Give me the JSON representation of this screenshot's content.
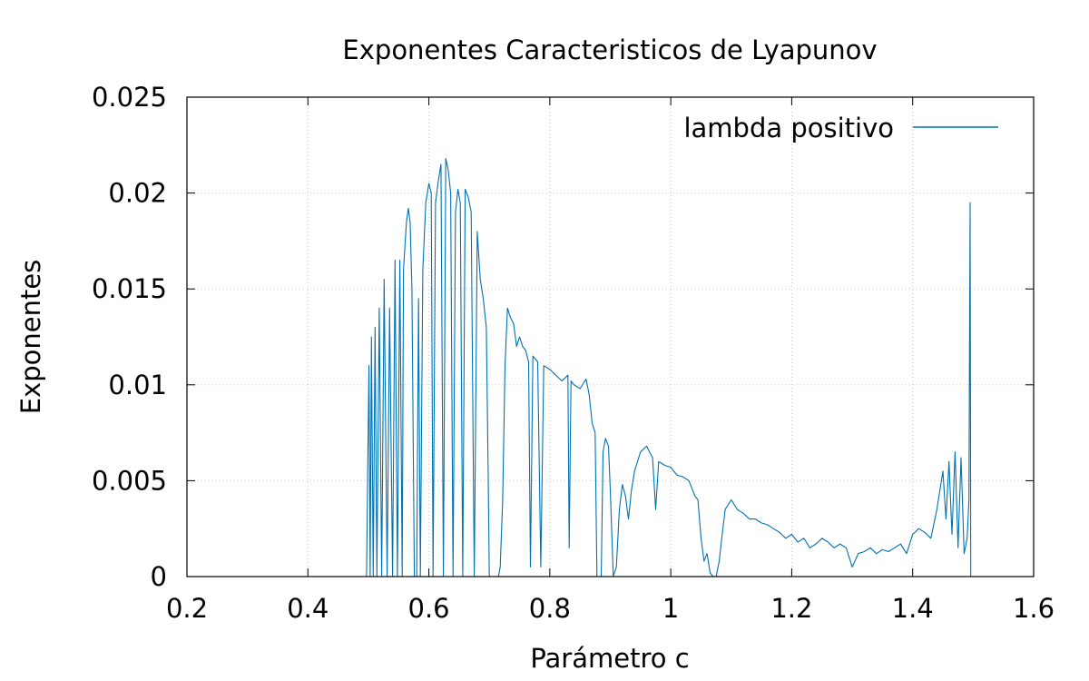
{
  "chart_data": {
    "type": "line",
    "title": "Exponentes Caracteristicos de Lyapunov",
    "xlabel": "Parámetro c",
    "ylabel": "Exponentes",
    "xlim": [
      0.2,
      1.6
    ],
    "ylim": [
      0,
      0.025
    ],
    "x_ticks": [
      0.2,
      0.4,
      0.6,
      0.8,
      1.0,
      1.2,
      1.4,
      1.6
    ],
    "x_tick_labels": [
      "0.2",
      "0.4",
      "0.6",
      "0.8",
      "1",
      "1.2",
      "1.4",
      "1.6"
    ],
    "y_ticks": [
      0,
      0.005,
      0.01,
      0.015,
      0.02,
      0.025
    ],
    "y_tick_labels": [
      "0",
      "0.005",
      "0.01",
      "0.015",
      "0.02",
      "0.025"
    ],
    "grid": true,
    "legend_position": "top-right",
    "series": [
      {
        "name": "lambda positivo",
        "color": "#0072b2",
        "points": [
          [
            0.38,
            0.0
          ],
          [
            0.45,
            0.0
          ],
          [
            0.497,
            0.0
          ],
          [
            0.499,
            0.006
          ],
          [
            0.501,
            0.011
          ],
          [
            0.503,
            0.0
          ],
          [
            0.505,
            0.0125
          ],
          [
            0.508,
            0.0
          ],
          [
            0.511,
            0.013
          ],
          [
            0.514,
            0.0
          ],
          [
            0.518,
            0.014
          ],
          [
            0.522,
            0.0
          ],
          [
            0.526,
            0.0155
          ],
          [
            0.531,
            0.0
          ],
          [
            0.535,
            0.014
          ],
          [
            0.54,
            0.0
          ],
          [
            0.544,
            0.0165
          ],
          [
            0.548,
            0.0
          ],
          [
            0.552,
            0.0165
          ],
          [
            0.556,
            0.0
          ],
          [
            0.558,
            0.016
          ],
          [
            0.563,
            0.0185
          ],
          [
            0.566,
            0.0192
          ],
          [
            0.569,
            0.0185
          ],
          [
            0.572,
            0.015
          ],
          [
            0.576,
            0.0
          ],
          [
            0.58,
            0.0
          ],
          [
            0.583,
            0.0145
          ],
          [
            0.586,
            0.0
          ],
          [
            0.59,
            0.016
          ],
          [
            0.595,
            0.0195
          ],
          [
            0.6,
            0.0205
          ],
          [
            0.604,
            0.02
          ],
          [
            0.607,
            0.0
          ],
          [
            0.611,
            0.0195
          ],
          [
            0.615,
            0.0205
          ],
          [
            0.62,
            0.0215
          ],
          [
            0.624,
            0.0
          ],
          [
            0.628,
            0.0218
          ],
          [
            0.632,
            0.0212
          ],
          [
            0.636,
            0.02
          ],
          [
            0.64,
            0.0
          ],
          [
            0.644,
            0.019
          ],
          [
            0.648,
            0.0202
          ],
          [
            0.652,
            0.0195
          ],
          [
            0.656,
            0.0
          ],
          [
            0.66,
            0.0202
          ],
          [
            0.665,
            0.0198
          ],
          [
            0.67,
            0.019
          ],
          [
            0.675,
            0.0
          ],
          [
            0.68,
            0.018
          ],
          [
            0.685,
            0.0155
          ],
          [
            0.69,
            0.0145
          ],
          [
            0.695,
            0.013
          ],
          [
            0.698,
            0.0055
          ],
          [
            0.7,
            0.0
          ],
          [
            0.715,
            0.0
          ],
          [
            0.718,
            0.0005
          ],
          [
            0.722,
            0.004
          ],
          [
            0.726,
            0.011
          ],
          [
            0.73,
            0.014
          ],
          [
            0.735,
            0.0135
          ],
          [
            0.74,
            0.0132
          ],
          [
            0.745,
            0.012
          ],
          [
            0.75,
            0.0125
          ],
          [
            0.755,
            0.012
          ],
          [
            0.76,
            0.0118
          ],
          [
            0.765,
            0.0112
          ],
          [
            0.768,
            0.0005
          ],
          [
            0.772,
            0.0115
          ],
          [
            0.78,
            0.0112
          ],
          [
            0.785,
            0.0005
          ],
          [
            0.79,
            0.011
          ],
          [
            0.8,
            0.0108
          ],
          [
            0.81,
            0.0105
          ],
          [
            0.82,
            0.0102
          ],
          [
            0.83,
            0.0105
          ],
          [
            0.832,
            0.0015
          ],
          [
            0.835,
            0.0102
          ],
          [
            0.84,
            0.01
          ],
          [
            0.85,
            0.0098
          ],
          [
            0.86,
            0.0103
          ],
          [
            0.865,
            0.0095
          ],
          [
            0.87,
            0.008
          ],
          [
            0.875,
            0.0075
          ],
          [
            0.878,
            0.0
          ],
          [
            0.885,
            0.0
          ],
          [
            0.888,
            0.0065
          ],
          [
            0.892,
            0.0072
          ],
          [
            0.897,
            0.0068
          ],
          [
            0.9,
            0.0045
          ],
          [
            0.905,
            0.0
          ],
          [
            0.91,
            0.0005
          ],
          [
            0.915,
            0.0035
          ],
          [
            0.92,
            0.0048
          ],
          [
            0.925,
            0.0042
          ],
          [
            0.93,
            0.003
          ],
          [
            0.935,
            0.0045
          ],
          [
            0.94,
            0.0055
          ],
          [
            0.945,
            0.006
          ],
          [
            0.95,
            0.0065
          ],
          [
            0.96,
            0.0068
          ],
          [
            0.97,
            0.0062
          ],
          [
            0.975,
            0.0035
          ],
          [
            0.98,
            0.006
          ],
          [
            0.99,
            0.0058
          ],
          [
            1.0,
            0.0057
          ],
          [
            1.01,
            0.0053
          ],
          [
            1.02,
            0.0052
          ],
          [
            1.03,
            0.005
          ],
          [
            1.04,
            0.0042
          ],
          [
            1.045,
            0.004
          ],
          [
            1.05,
            0.002
          ],
          [
            1.055,
            0.0008
          ],
          [
            1.06,
            0.0012
          ],
          [
            1.065,
            0.0002
          ],
          [
            1.07,
            0.0
          ],
          [
            1.075,
            0.0
          ],
          [
            1.08,
            0.0008
          ],
          [
            1.085,
            0.0022
          ],
          [
            1.09,
            0.0035
          ],
          [
            1.1,
            0.004
          ],
          [
            1.11,
            0.0035
          ],
          [
            1.12,
            0.0033
          ],
          [
            1.13,
            0.003
          ],
          [
            1.14,
            0.003
          ],
          [
            1.15,
            0.0028
          ],
          [
            1.16,
            0.0027
          ],
          [
            1.17,
            0.0025
          ],
          [
            1.18,
            0.0023
          ],
          [
            1.19,
            0.002
          ],
          [
            1.2,
            0.0022
          ],
          [
            1.21,
            0.0018
          ],
          [
            1.22,
            0.002
          ],
          [
            1.23,
            0.0015
          ],
          [
            1.24,
            0.0017
          ],
          [
            1.25,
            0.002
          ],
          [
            1.26,
            0.0018
          ],
          [
            1.27,
            0.0015
          ],
          [
            1.28,
            0.0017
          ],
          [
            1.29,
            0.0015
          ],
          [
            1.3,
            0.0005
          ],
          [
            1.31,
            0.0012
          ],
          [
            1.32,
            0.0013
          ],
          [
            1.33,
            0.0015
          ],
          [
            1.34,
            0.0012
          ],
          [
            1.35,
            0.0014
          ],
          [
            1.36,
            0.0013
          ],
          [
            1.37,
            0.0015
          ],
          [
            1.38,
            0.0017
          ],
          [
            1.39,
            0.0012
          ],
          [
            1.4,
            0.0022
          ],
          [
            1.41,
            0.0025
          ],
          [
            1.42,
            0.0023
          ],
          [
            1.43,
            0.002
          ],
          [
            1.44,
            0.0035
          ],
          [
            1.45,
            0.0055
          ],
          [
            1.455,
            0.003
          ],
          [
            1.46,
            0.006
          ],
          [
            1.465,
            0.0022
          ],
          [
            1.47,
            0.0065
          ],
          [
            1.475,
            0.0015
          ],
          [
            1.48,
            0.0062
          ],
          [
            1.485,
            0.0012
          ],
          [
            1.49,
            0.002
          ],
          [
            1.493,
            0.004
          ],
          [
            1.495,
            0.0195
          ],
          [
            1.496,
            0.0
          ],
          [
            1.497,
            0.0
          ]
        ]
      }
    ]
  }
}
